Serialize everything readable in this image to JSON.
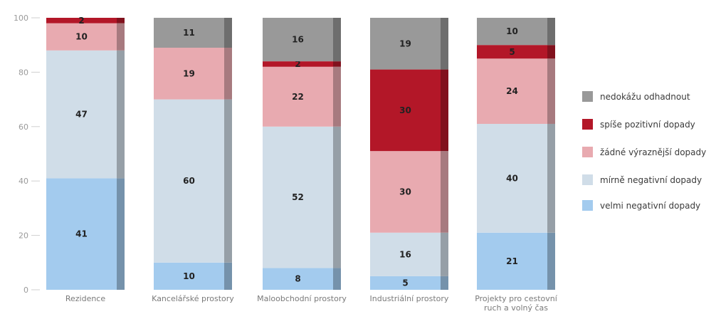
{
  "chart_data": {
    "type": "bar",
    "stacked": true,
    "categories": [
      "Rezidence",
      "Kancelářské prostory",
      "Maloobchodní prostory",
      "Industriální prostory",
      "Projekty pro cestovní ruch a volný čas"
    ],
    "series": [
      {
        "name": "velmi negativní dopady",
        "color": "#a3cbee",
        "values": [
          41,
          10,
          8,
          5,
          21
        ]
      },
      {
        "name": "mírně negativní dopady",
        "color": "#d0dde8",
        "values": [
          47,
          60,
          52,
          16,
          40
        ]
      },
      {
        "name": "žádné výraznější dopady",
        "color": "#e8aab0",
        "values": [
          10,
          19,
          22,
          30,
          24
        ]
      },
      {
        "name": "spíše pozitivní dopady",
        "color": "#b31728",
        "values": [
          2,
          0,
          2,
          30,
          5
        ]
      },
      {
        "name": "nedokážu odhadnout",
        "color": "#999999",
        "values": [
          0,
          11,
          16,
          19,
          10
        ]
      }
    ],
    "legend_order": [
      "nedokážu odhadnout",
      "spíše pozitivní dopady",
      "žádné výraznější dopady",
      "mírně negativní dopady",
      "velmi negativní dopady"
    ],
    "yticks": [
      0,
      20,
      40,
      60,
      80,
      100
    ],
    "ylim": [
      0,
      100
    ],
    "grid": false,
    "legend": "right",
    "title": "",
    "xlabel": "",
    "ylabel": ""
  }
}
